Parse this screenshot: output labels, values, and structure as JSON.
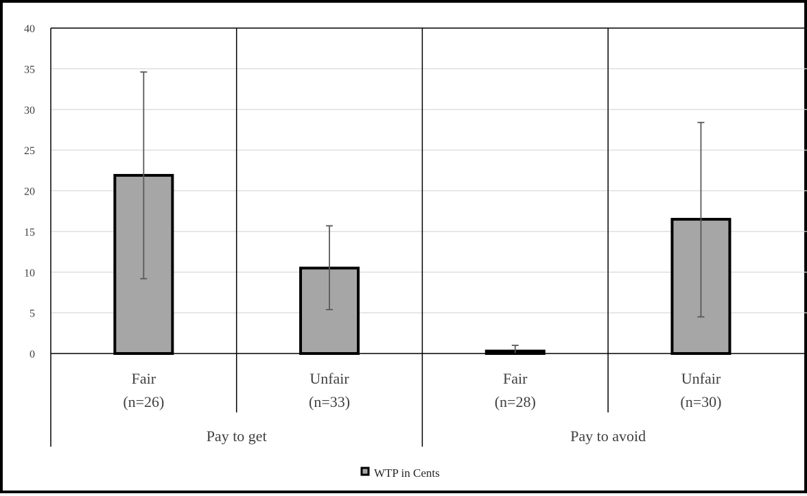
{
  "chart_data": {
    "type": "bar",
    "ylim": [
      0,
      40
    ],
    "yticks": [
      0,
      5,
      10,
      15,
      20,
      25,
      30,
      35,
      40
    ],
    "grid": true,
    "legend_position": "bottom",
    "series": [
      {
        "name": "WTP in Cents",
        "values": [
          21.9,
          10.5,
          0.3,
          16.5
        ],
        "error_low": [
          9.2,
          5.4,
          0.0,
          4.5
        ],
        "error_high": [
          34.6,
          15.7,
          1.0,
          28.4
        ]
      }
    ],
    "categories": [
      {
        "label_line1": "Fair",
        "label_line2": "(n=26)"
      },
      {
        "label_line1": "Unfair",
        "label_line2": "(n=33)"
      },
      {
        "label_line1": "Fair",
        "label_line2": "(n=28)"
      },
      {
        "label_line1": "Unfair",
        "label_line2": "(n=30)"
      }
    ],
    "groups": [
      {
        "label": "Pay to get"
      },
      {
        "label": "Pay to avoid"
      }
    ],
    "colors": {
      "bar_fill": "#a6a6a6",
      "bar_stroke": "#000000",
      "grid": "#d9d9d9",
      "error_bar": "#595959",
      "axis": "#000000"
    }
  }
}
